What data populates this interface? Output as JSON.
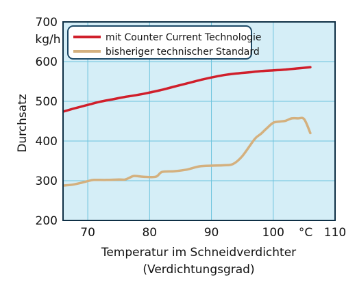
{
  "chart_data": {
    "type": "line",
    "title": "",
    "xlabel_line1": "Temperatur im Schneidverdichter",
    "xlabel_line2": "(Verdichtungsgrad)",
    "ylabel": "Durchsatz",
    "y_unit": "kg/h",
    "x_unit": "°C",
    "xlim": [
      66,
      110
    ],
    "ylim": [
      200,
      700
    ],
    "x_ticks": [
      70,
      80,
      90,
      100,
      110
    ],
    "y_ticks": [
      200,
      300,
      400,
      500,
      600,
      700
    ],
    "grid": true,
    "legend_position": "top-left",
    "colors": {
      "background": "#d5eef7",
      "grid": "#6cc3dd",
      "frame": "#0e2f45"
    },
    "series": [
      {
        "name": "mit Counter Current Technologie",
        "color": "#d01f2b",
        "x": [
          66,
          68,
          70,
          72,
          74,
          76,
          78,
          80,
          82,
          84,
          86,
          88,
          90,
          92,
          94,
          96,
          98,
          100,
          102,
          104,
          106
        ],
        "y": [
          474,
          483,
          491,
          499,
          505,
          511,
          516,
          522,
          529,
          537,
          545,
          553,
          560,
          566,
          570,
          573,
          576,
          578,
          580,
          583,
          586
        ]
      },
      {
        "name": "bisheriger technischer Standard",
        "color": "#d4b07e",
        "x": [
          66,
          67.5,
          69,
          70,
          71,
          73,
          75,
          76,
          76.8,
          77.5,
          79,
          81,
          82,
          84,
          86,
          88,
          90,
          92,
          93.5,
          95,
          97,
          98,
          99,
          100,
          101,
          102,
          103,
          104,
          105,
          106
        ],
        "y": [
          288,
          290,
          295,
          299,
          302,
          302,
          303,
          303,
          308,
          312,
          310,
          310,
          322,
          324,
          328,
          336,
          338,
          339,
          342,
          362,
          405,
          418,
          433,
          446,
          449,
          451,
          457,
          457,
          455,
          420
        ]
      }
    ]
  }
}
